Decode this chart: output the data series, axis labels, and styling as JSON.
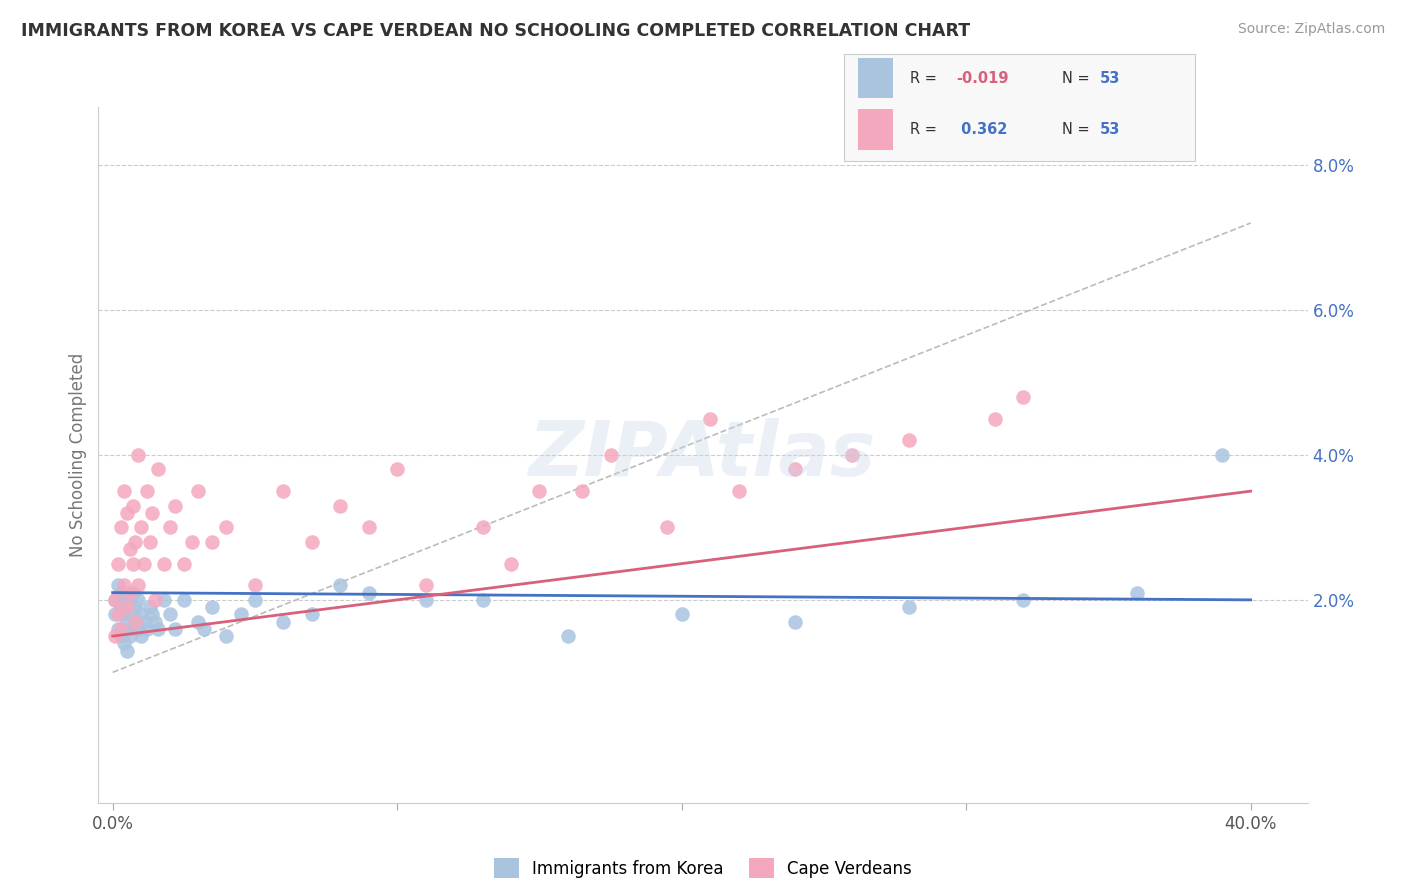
{
  "title": "IMMIGRANTS FROM KOREA VS CAPE VERDEAN NO SCHOOLING COMPLETED CORRELATION CHART",
  "source": "Source: ZipAtlas.com",
  "ylabel_left": "No Schooling Completed",
  "xlim": [
    0.0,
    0.42
  ],
  "ylim": [
    -0.005,
    0.088
  ],
  "plot_xlim": [
    0.0,
    0.4
  ],
  "plot_ylim": [
    0.0,
    0.085
  ],
  "xticks": [
    0.0,
    0.1,
    0.2,
    0.3,
    0.4
  ],
  "xtick_labels": [
    "0.0%",
    "",
    "",
    "",
    "40.0%"
  ],
  "yticks_right": [
    0.02,
    0.04,
    0.06,
    0.08
  ],
  "ytick_labels_right": [
    "2.0%",
    "4.0%",
    "6.0%",
    "8.0%"
  ],
  "legend_label1": "Immigrants from Korea",
  "legend_label2": "Cape Verdeans",
  "R1": "-0.019",
  "N1": "53",
  "R2": "0.362",
  "N2": "53",
  "color_korea": "#aac4e0",
  "color_cape": "#f4a8be",
  "trendline_korea_color": "#4472c4",
  "trendline_cape_color": "#d9607a",
  "trendline_gray_color": "#bbbbbb",
  "background_color": "#ffffff",
  "grid_color": "#cccccc",
  "watermark": "ZIPAtlas",
  "korea_x": [
    0.001,
    0.001,
    0.002,
    0.002,
    0.003,
    0.003,
    0.003,
    0.004,
    0.004,
    0.004,
    0.005,
    0.005,
    0.005,
    0.006,
    0.006,
    0.006,
    0.007,
    0.007,
    0.008,
    0.008,
    0.009,
    0.009,
    0.01,
    0.01,
    0.011,
    0.012,
    0.013,
    0.014,
    0.015,
    0.016,
    0.018,
    0.02,
    0.022,
    0.025,
    0.03,
    0.032,
    0.035,
    0.04,
    0.045,
    0.05,
    0.06,
    0.07,
    0.08,
    0.09,
    0.11,
    0.13,
    0.16,
    0.2,
    0.24,
    0.28,
    0.32,
    0.36,
    0.39
  ],
  "korea_y": [
    0.02,
    0.018,
    0.022,
    0.016,
    0.019,
    0.021,
    0.015,
    0.018,
    0.02,
    0.014,
    0.017,
    0.019,
    0.013,
    0.016,
    0.02,
    0.015,
    0.018,
    0.021,
    0.017,
    0.019,
    0.016,
    0.02,
    0.015,
    0.018,
    0.017,
    0.016,
    0.019,
    0.018,
    0.017,
    0.016,
    0.02,
    0.018,
    0.016,
    0.02,
    0.017,
    0.016,
    0.019,
    0.015,
    0.018,
    0.02,
    0.017,
    0.018,
    0.022,
    0.021,
    0.02,
    0.02,
    0.015,
    0.018,
    0.017,
    0.019,
    0.02,
    0.021,
    0.04
  ],
  "cape_x": [
    0.001,
    0.001,
    0.002,
    0.002,
    0.003,
    0.003,
    0.004,
    0.004,
    0.005,
    0.005,
    0.006,
    0.006,
    0.007,
    0.007,
    0.008,
    0.008,
    0.009,
    0.009,
    0.01,
    0.011,
    0.012,
    0.013,
    0.014,
    0.015,
    0.016,
    0.018,
    0.02,
    0.022,
    0.025,
    0.028,
    0.03,
    0.035,
    0.04,
    0.05,
    0.06,
    0.07,
    0.08,
    0.09,
    0.1,
    0.11,
    0.13,
    0.14,
    0.15,
    0.165,
    0.175,
    0.195,
    0.21,
    0.22,
    0.24,
    0.26,
    0.28,
    0.31,
    0.32
  ],
  "cape_y": [
    0.02,
    0.015,
    0.025,
    0.018,
    0.03,
    0.016,
    0.035,
    0.022,
    0.032,
    0.019,
    0.027,
    0.021,
    0.033,
    0.025,
    0.028,
    0.017,
    0.04,
    0.022,
    0.03,
    0.025,
    0.035,
    0.028,
    0.032,
    0.02,
    0.038,
    0.025,
    0.03,
    0.033,
    0.025,
    0.028,
    0.035,
    0.028,
    0.03,
    0.022,
    0.035,
    0.028,
    0.033,
    0.03,
    0.038,
    0.022,
    0.03,
    0.025,
    0.035,
    0.035,
    0.04,
    0.03,
    0.045,
    0.035,
    0.038,
    0.04,
    0.042,
    0.045,
    0.048
  ],
  "trendline_korea": [
    0.021,
    0.02
  ],
  "trendline_cape_start": 0.015,
  "trendline_cape_end": 0.035,
  "trendline_gray_start": 0.01,
  "trendline_gray_end": 0.072
}
